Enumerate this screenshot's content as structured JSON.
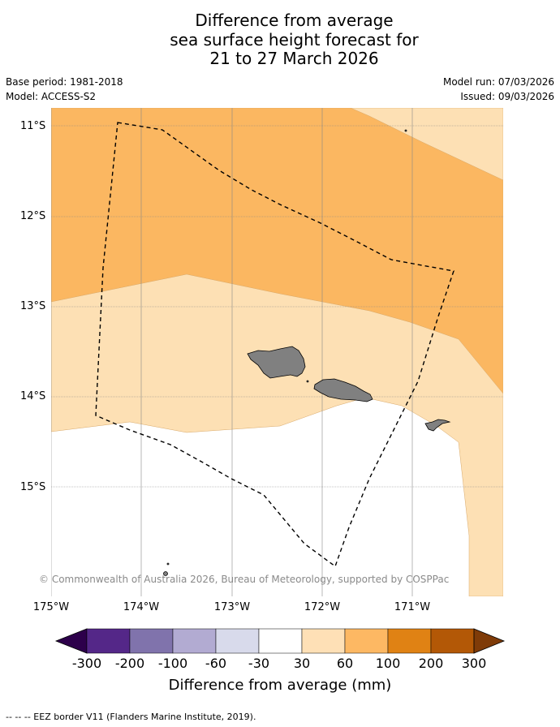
{
  "title": {
    "line1": "Difference from average",
    "line2": "sea surface height forecast for",
    "line3": "21 to 27 March 2026"
  },
  "meta": {
    "base_period": "Base period: 1981-2018",
    "model": "Model: ACCESS-S2",
    "model_run": "Model run: 07/03/2026",
    "issued": "Issued: 09/03/2026"
  },
  "map": {
    "lat_labels": [
      "11°S",
      "12°S",
      "13°S",
      "14°S",
      "15°S"
    ],
    "lon_labels": [
      "175°W",
      "174°W",
      "173°W",
      "172°W",
      "171°W"
    ],
    "copyright": "© Commonwealth of Australia 2026, Bureau of Meteorology, supported by COSPPac",
    "land_color": "#808080",
    "zones": [
      {
        "name": "30-60",
        "color": "#fde0b4"
      },
      {
        "name": "60-100",
        "color": "#fbb761"
      },
      {
        "name": "-30-30",
        "color": "#ffffff"
      }
    ]
  },
  "colorbar": {
    "title": "Difference from average (mm)",
    "ticks": [
      "-300",
      "-200",
      "-100",
      "-60",
      "-30",
      "30",
      "60",
      "100",
      "200",
      "300"
    ],
    "colors": [
      "#2d004b",
      "#542788",
      "#8073ac",
      "#b2abd2",
      "#d8daeb",
      "#ffffff",
      "#fee0b6",
      "#fdb863",
      "#e08214",
      "#b35806",
      "#7f3b08"
    ]
  },
  "footnote": "--  --  -- EEZ border V11 (Flanders Marine Institute, 2019)."
}
